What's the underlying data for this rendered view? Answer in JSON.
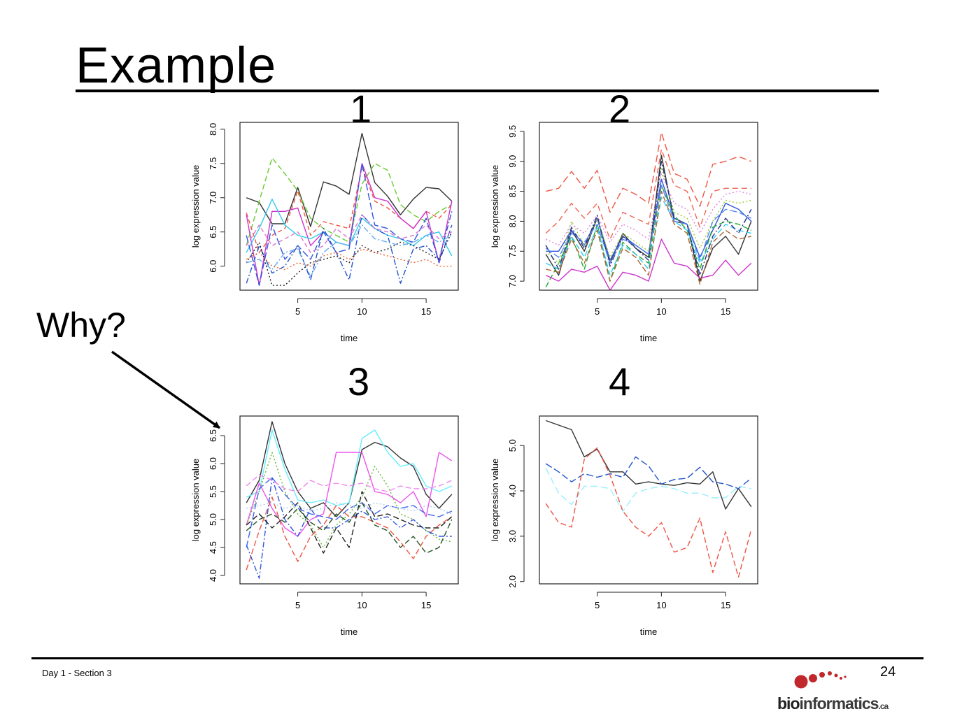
{
  "slide": {
    "title": "Example",
    "why_label": "Why?",
    "footer_left": "Day 1 - Section 3",
    "page_number": "24",
    "logo": {
      "bold": "bio",
      "rest": "informatics",
      "suffix": ".ca",
      "dot_color": "#c0282d"
    }
  },
  "panel_numbers": [
    "1",
    "2",
    "3",
    "4"
  ],
  "chart_data": [
    {
      "type": "line",
      "panel": "1",
      "xlabel": "time",
      "ylabel": "log expression value",
      "xlim": [
        0.5,
        17.5
      ],
      "ylim": [
        5.65,
        8.1
      ],
      "xticks": [
        5,
        10,
        15
      ],
      "yticks": [
        6.0,
        6.5,
        7.0,
        7.5,
        8.0
      ],
      "ytick_labels": [
        "6.0",
        "6.5",
        "7.0",
        "7.5",
        "8.0"
      ],
      "x": [
        1,
        2,
        3,
        4,
        5,
        6,
        7,
        8,
        9,
        10,
        11,
        12,
        13,
        14,
        15,
        16,
        17
      ],
      "series": [
        {
          "color": "#333333",
          "dash": "",
          "values": [
            7.0,
            6.93,
            6.62,
            6.62,
            7.15,
            6.58,
            7.23,
            7.17,
            7.05,
            7.94,
            7.22,
            7.02,
            6.75,
            6.98,
            7.15,
            7.13,
            6.95
          ]
        },
        {
          "color": "#66cc33",
          "dash": "8,4",
          "values": [
            6.3,
            6.95,
            7.58,
            7.35,
            7.1,
            6.7,
            6.55,
            6.45,
            6.35,
            7.2,
            7.5,
            7.4,
            6.9,
            6.75,
            6.65,
            6.8,
            6.9
          ]
        },
        {
          "color": "#ee5544",
          "dash": "6,4",
          "values": [
            6.78,
            6.2,
            6.45,
            6.55,
            7.1,
            6.45,
            6.65,
            6.6,
            6.55,
            7.45,
            6.95,
            6.85,
            6.7,
            6.55,
            6.8,
            6.7,
            6.9
          ]
        },
        {
          "color": "#cc33cc",
          "dash": "",
          "values": [
            6.75,
            5.72,
            6.8,
            6.8,
            6.85,
            6.3,
            6.5,
            6.35,
            6.3,
            7.5,
            7.0,
            6.95,
            6.7,
            6.55,
            6.8,
            6.05,
            6.95
          ]
        },
        {
          "color": "#33ccee",
          "dash": "",
          "values": [
            6.2,
            6.55,
            6.98,
            6.6,
            6.45,
            6.4,
            6.5,
            6.35,
            6.3,
            6.7,
            6.55,
            6.45,
            6.4,
            6.3,
            6.45,
            6.5,
            6.15
          ]
        },
        {
          "color": "#3355dd",
          "dash": "10,4",
          "values": [
            6.45,
            5.72,
            6.6,
            6.1,
            6.3,
            6.1,
            6.5,
            6.2,
            6.25,
            7.5,
            6.6,
            6.55,
            6.4,
            6.35,
            6.7,
            6.05,
            6.6
          ]
        },
        {
          "color": "#2255cc",
          "dash": "8,3,2,3",
          "values": [
            5.75,
            6.3,
            5.9,
            6.0,
            6.3,
            5.8,
            6.55,
            6.2,
            5.8,
            6.75,
            6.55,
            6.45,
            5.75,
            6.25,
            6.3,
            6.1,
            6.8
          ]
        },
        {
          "color": "#dd77cc",
          "dash": "6,4",
          "values": [
            6.3,
            6.6,
            6.3,
            6.4,
            6.5,
            6.2,
            6.3,
            6.55,
            6.4,
            6.75,
            6.55,
            6.5,
            6.4,
            6.45,
            6.6,
            6.4,
            6.5
          ]
        },
        {
          "color": "#222222",
          "dash": "2,3",
          "values": [
            6.05,
            6.35,
            5.72,
            5.72,
            5.9,
            6.05,
            6.1,
            6.15,
            6.05,
            6.3,
            6.2,
            6.25,
            6.35,
            6.3,
            6.2,
            6.1,
            6.5
          ]
        },
        {
          "color": "#ee6633",
          "dash": "2,3",
          "values": [
            6.1,
            6.2,
            6.0,
            5.95,
            6.05,
            6.0,
            6.15,
            6.2,
            6.1,
            6.25,
            6.2,
            6.15,
            6.1,
            6.05,
            6.1,
            6.0,
            6.0
          ]
        },
        {
          "color": "#66aaee",
          "dash": "8,3,2,3",
          "values": [
            6.05,
            6.1,
            5.95,
            6.2,
            6.25,
            5.85,
            6.2,
            6.35,
            6.3,
            6.6,
            6.4,
            6.35,
            6.3,
            6.35,
            6.45,
            6.35,
            6.45
          ]
        }
      ]
    },
    {
      "type": "line",
      "panel": "2",
      "xlabel": "time",
      "ylabel": "log expression value",
      "xlim": [
        0.5,
        17.5
      ],
      "ylim": [
        6.85,
        9.65
      ],
      "xticks": [
        5,
        10,
        15
      ],
      "yticks": [
        7.0,
        7.5,
        8.0,
        8.5,
        9.0,
        9.5
      ],
      "ytick_labels": [
        "7.0",
        "7.5",
        "8.0",
        "8.5",
        "9.0",
        "9.5"
      ],
      "x": [
        1,
        2,
        3,
        4,
        5,
        6,
        7,
        8,
        9,
        10,
        11,
        12,
        13,
        14,
        15,
        16,
        17
      ],
      "series": [
        {
          "color": "#ee5544",
          "dash": "10,5",
          "values": [
            8.5,
            8.55,
            8.83,
            8.55,
            8.85,
            8.15,
            8.55,
            8.45,
            8.3,
            9.48,
            8.8,
            8.7,
            8.25,
            8.95,
            9.0,
            9.08,
            9.0
          ]
        },
        {
          "color": "#ee6655",
          "dash": "8,5",
          "values": [
            7.8,
            8.0,
            8.3,
            8.05,
            8.3,
            7.7,
            8.15,
            8.05,
            7.95,
            9.2,
            8.6,
            8.5,
            7.9,
            8.5,
            8.55,
            8.55,
            8.55
          ]
        },
        {
          "color": "#333333",
          "dash": "",
          "values": [
            7.45,
            7.1,
            7.85,
            7.5,
            8.05,
            7.3,
            7.8,
            7.55,
            7.4,
            9.1,
            8.0,
            7.95,
            7.0,
            7.55,
            7.75,
            7.45,
            8.0
          ]
        },
        {
          "color": "#3355dd",
          "dash": "",
          "values": [
            7.5,
            7.5,
            7.85,
            7.6,
            8.05,
            7.35,
            7.75,
            7.6,
            7.45,
            8.7,
            8.05,
            7.95,
            7.4,
            7.85,
            8.3,
            8.2,
            8.0
          ]
        },
        {
          "color": "#22aa33",
          "dash": "8,4",
          "values": [
            6.9,
            7.3,
            7.75,
            7.2,
            7.95,
            7.0,
            7.65,
            7.45,
            7.3,
            8.6,
            8.1,
            7.85,
            7.2,
            7.9,
            8.0,
            7.95,
            7.85
          ]
        },
        {
          "color": "#cc33cc",
          "dash": "",
          "values": [
            7.1,
            7.0,
            7.2,
            7.15,
            7.25,
            6.85,
            7.15,
            7.1,
            7.0,
            7.7,
            7.3,
            7.25,
            7.05,
            7.1,
            7.35,
            7.1,
            7.3
          ]
        },
        {
          "color": "#33ccee",
          "dash": "8,4",
          "values": [
            7.3,
            7.2,
            7.75,
            7.4,
            7.9,
            7.1,
            7.6,
            7.45,
            7.2,
            8.4,
            8.0,
            7.85,
            7.3,
            7.7,
            7.95,
            7.85,
            7.8
          ]
        },
        {
          "color": "#99cc33",
          "dash": "2,3",
          "values": [
            7.5,
            7.3,
            8.0,
            7.6,
            8.05,
            7.4,
            7.8,
            7.65,
            7.5,
            8.9,
            8.15,
            8.05,
            7.55,
            8.0,
            8.35,
            8.3,
            8.35
          ]
        },
        {
          "color": "#dd88dd",
          "dash": "2,3",
          "values": [
            7.7,
            7.6,
            7.95,
            7.8,
            8.1,
            7.65,
            7.95,
            7.85,
            7.7,
            8.8,
            8.3,
            8.2,
            7.8,
            8.2,
            8.45,
            8.5,
            8.45
          ]
        },
        {
          "color": "#223388",
          "dash": "8,3,2,3",
          "values": [
            7.6,
            7.2,
            7.9,
            7.55,
            8.1,
            7.25,
            7.75,
            7.55,
            7.35,
            9.0,
            8.05,
            7.95,
            7.1,
            7.75,
            8.05,
            7.8,
            8.2
          ]
        },
        {
          "color": "#5588ee",
          "dash": "10,4",
          "values": [
            7.55,
            7.4,
            7.8,
            7.65,
            7.95,
            7.3,
            7.7,
            7.6,
            7.45,
            8.6,
            8.0,
            7.95,
            7.35,
            8.0,
            8.2,
            8.15,
            8.05
          ]
        },
        {
          "color": "#aa6633",
          "dash": "8,4",
          "values": [
            7.2,
            7.15,
            7.7,
            7.3,
            7.85,
            7.0,
            7.55,
            7.4,
            7.1,
            8.5,
            7.95,
            7.8,
            6.95,
            7.65,
            7.85,
            7.7,
            7.75
          ]
        }
      ]
    },
    {
      "type": "line",
      "panel": "3",
      "xlabel": "time",
      "ylabel": "log expression value",
      "xlim": [
        0.5,
        17.5
      ],
      "ylim": [
        3.85,
        6.85
      ],
      "xticks": [
        5,
        10,
        15
      ],
      "yticks": [
        4.0,
        4.5,
        5.0,
        5.5,
        6.0,
        6.5
      ],
      "ytick_labels": [
        "4.0",
        "4.5",
        "5.0",
        "5.5",
        "6.0",
        "6.5"
      ],
      "x": [
        1,
        2,
        3,
        4,
        5,
        6,
        7,
        8,
        9,
        10,
        11,
        12,
        13,
        14,
        15,
        16,
        17
      ],
      "series": [
        {
          "color": "#333333",
          "dash": "",
          "values": [
            5.3,
            5.7,
            6.75,
            6.0,
            5.5,
            5.2,
            5.3,
            5.05,
            5.3,
            6.25,
            6.38,
            6.3,
            6.1,
            5.95,
            5.45,
            5.2,
            5.45
          ]
        },
        {
          "color": "#66eeff",
          "dash": "",
          "values": [
            5.4,
            5.5,
            6.6,
            5.9,
            5.35,
            5.3,
            5.35,
            5.25,
            5.3,
            6.45,
            6.6,
            6.2,
            5.95,
            6.0,
            5.6,
            5.5,
            5.6
          ]
        },
        {
          "color": "#ee55ee",
          "dash": "",
          "values": [
            4.9,
            5.65,
            5.2,
            4.85,
            4.7,
            5.0,
            5.1,
            6.2,
            6.2,
            6.2,
            5.5,
            5.45,
            5.3,
            5.5,
            5.05,
            6.2,
            6.05
          ]
        },
        {
          "color": "#66bb33",
          "dash": "2,3",
          "values": [
            4.9,
            5.5,
            6.2,
            5.5,
            5.1,
            4.9,
            4.5,
            4.9,
            5.1,
            5.4,
            5.95,
            5.6,
            5.1,
            5.0,
            4.8,
            4.65,
            4.6
          ]
        },
        {
          "color": "#ee5544",
          "dash": "8,4",
          "values": [
            4.1,
            4.8,
            5.4,
            4.7,
            4.25,
            4.7,
            4.9,
            5.25,
            5.05,
            5.05,
            4.95,
            4.85,
            4.6,
            4.3,
            4.7,
            4.9,
            5.05
          ]
        },
        {
          "color": "#3355dd",
          "dash": "8,3,2,3",
          "values": [
            4.55,
            3.95,
            5.75,
            5.0,
            4.7,
            5.2,
            4.85,
            4.85,
            5.0,
            5.15,
            5.0,
            5.05,
            4.85,
            5.0,
            4.8,
            4.7,
            4.7
          ]
        },
        {
          "color": "#222222",
          "dash": "8,4",
          "values": [
            4.9,
            5.1,
            4.85,
            5.05,
            5.3,
            4.85,
            4.4,
            4.85,
            4.5,
            5.5,
            5.05,
            5.1,
            5.0,
            4.9,
            4.85,
            4.85,
            5.05
          ]
        },
        {
          "color": "#4466ee",
          "dash": "10,4",
          "values": [
            4.5,
            5.55,
            5.75,
            5.45,
            5.2,
            5.1,
            5.05,
            5.0,
            5.2,
            5.3,
            5.1,
            5.25,
            5.2,
            5.25,
            5.1,
            5.05,
            5.15
          ]
        },
        {
          "color": "#ee88ee",
          "dash": "8,4",
          "values": [
            5.6,
            5.8,
            5.7,
            5.55,
            5.5,
            5.7,
            5.6,
            5.65,
            5.6,
            5.65,
            5.55,
            5.5,
            5.6,
            5.55,
            5.55,
            5.6,
            5.7
          ]
        },
        {
          "color": "#225522",
          "dash": "8,4",
          "values": [
            4.8,
            5.0,
            5.1,
            4.95,
            5.2,
            4.95,
            4.8,
            5.1,
            4.95,
            5.3,
            4.9,
            4.8,
            4.5,
            4.7,
            4.4,
            4.5,
            5.0
          ]
        },
        {
          "color": "#aaccee",
          "dash": "2,3",
          "values": [
            5.2,
            5.25,
            5.3,
            5.2,
            5.25,
            5.15,
            5.2,
            5.3,
            5.25,
            5.2,
            5.3,
            5.25,
            5.2,
            5.15,
            5.25,
            5.2,
            5.1
          ]
        }
      ]
    },
    {
      "type": "line",
      "panel": "4",
      "xlabel": "time",
      "ylabel": "log expression value",
      "xlim": [
        0.5,
        17.5
      ],
      "ylim": [
        1.95,
        5.65
      ],
      "xticks": [
        5,
        10,
        15
      ],
      "yticks": [
        2.0,
        3.0,
        4.0,
        5.0
      ],
      "ytick_labels": [
        "2.0",
        "3.0",
        "4.0",
        "5.0"
      ],
      "x": [
        1,
        2,
        3,
        4,
        5,
        6,
        7,
        8,
        9,
        10,
        11,
        12,
        13,
        14,
        15,
        16,
        17
      ],
      "series": [
        {
          "color": "#333333",
          "dash": "",
          "values": [
            5.55,
            5.45,
            5.35,
            4.75,
            4.92,
            4.42,
            4.42,
            4.15,
            4.2,
            4.15,
            4.12,
            4.18,
            4.15,
            4.42,
            3.6,
            4.05,
            3.65
          ]
        },
        {
          "color": "#2255cc",
          "dash": "10,4",
          "values": [
            4.6,
            4.42,
            4.2,
            4.38,
            4.3,
            4.38,
            4.3,
            4.75,
            4.55,
            4.15,
            4.25,
            4.28,
            4.52,
            4.2,
            4.15,
            4.05,
            4.28
          ]
        },
        {
          "color": "#99eeff",
          "dash": "10,5",
          "values": [
            4.5,
            3.95,
            3.7,
            4.1,
            4.1,
            4.05,
            3.55,
            3.95,
            4.05,
            4.1,
            4.05,
            3.95,
            3.95,
            3.85,
            3.85,
            4.1,
            4.05
          ]
        },
        {
          "color": "#ee5544",
          "dash": "8,4",
          "values": [
            3.72,
            3.3,
            3.2,
            4.7,
            4.95,
            4.35,
            3.55,
            3.2,
            3.0,
            3.3,
            2.65,
            2.75,
            3.4,
            2.2,
            3.1,
            2.1,
            3.15
          ]
        }
      ]
    }
  ]
}
